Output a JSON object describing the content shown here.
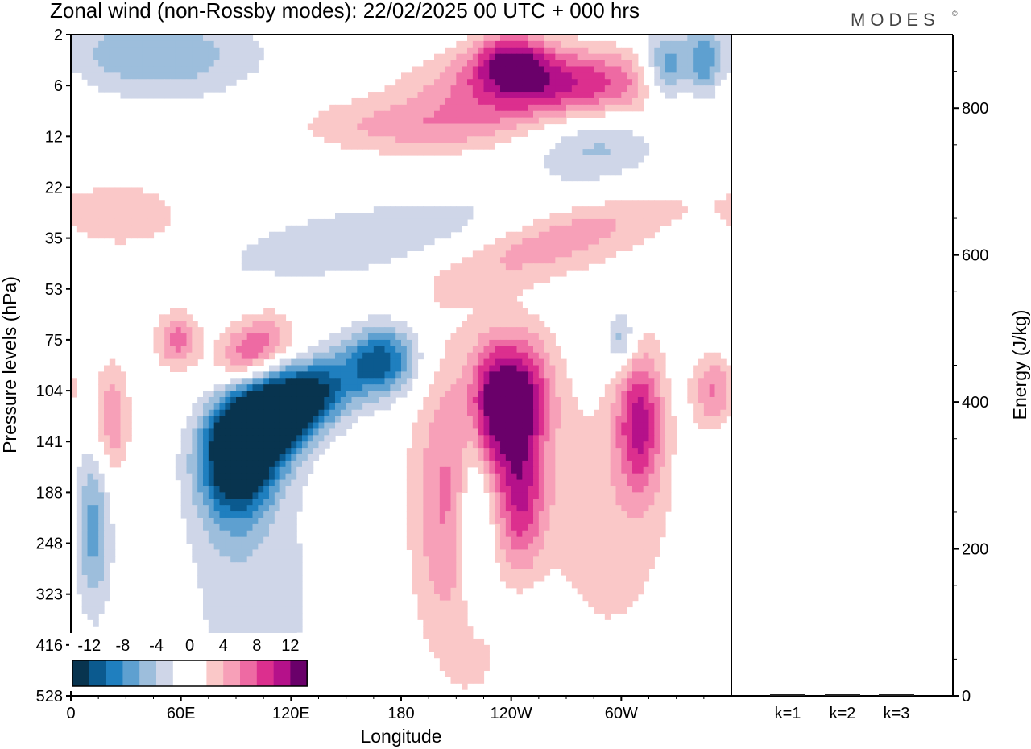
{
  "title": "Zonal wind (non-Rossby modes):  22/02/2025  00 UTC  + 000 hrs",
  "brand": "MODES",
  "brand_mark": "©",
  "colors": {
    "scale": [
      "#08344f",
      "#0b5a8f",
      "#1f7fbf",
      "#5ea0d0",
      "#9dbedc",
      "#cfd6e8",
      "#ffffff",
      "#ffffff",
      "#fac8c8",
      "#f7a0b8",
      "#ee6aa3",
      "#dc2f8e",
      "#b5118a",
      "#6a006a"
    ],
    "axis": "#000000"
  },
  "chart_data": [
    {
      "type": "heatmap",
      "title": "Zonal wind (non-Rossby modes):  22/02/2025  00 UTC  + 000 hrs",
      "xlabel": "Longitude",
      "ylabel": "Pressure levels (hPa)",
      "x_ticks": [
        "0",
        "60E",
        "120E",
        "180",
        "120W",
        "60W"
      ],
      "x_tick_values": [
        0,
        60,
        120,
        180,
        240,
        300
      ],
      "xlim": [
        0,
        360
      ],
      "y_ticks": [
        "2",
        "6",
        "12",
        "22",
        "35",
        "53",
        "75",
        "104",
        "141",
        "188",
        "248",
        "323",
        "416",
        "528"
      ],
      "colorbar_labels": [
        "-12",
        "-8",
        "-4",
        "0",
        "4",
        "8",
        "12"
      ],
      "colorbar_levels": [
        -14,
        -12,
        -10,
        -8,
        -6,
        -4,
        -2,
        0,
        2,
        4,
        6,
        8,
        10,
        12,
        14
      ],
      "features": [
        {
          "lon": 100,
          "level_index": 7.8,
          "value": -14,
          "dlon": 18,
          "dlev": 0.7,
          "slope": -0.012
        },
        {
          "lon": 125,
          "level_index": 7.2,
          "value": -13,
          "dlon": 22,
          "dlev": 0.5,
          "slope": -0.012
        },
        {
          "lon": 92,
          "level_index": 8.5,
          "value": -10,
          "dlon": 14,
          "dlev": 0.9,
          "slope": -0.01
        },
        {
          "lon": 170,
          "level_index": 6.4,
          "value": -10,
          "dlon": 14,
          "dlev": 0.5,
          "slope": 0
        },
        {
          "lon": 12,
          "level_index": 9.7,
          "value": -7,
          "dlon": 7,
          "dlev": 1.2,
          "slope": 0
        },
        {
          "lon": 220,
          "level_index": 9.3,
          "value": -6,
          "dlon": 6,
          "dlev": 1.5,
          "slope": 0
        },
        {
          "lon": 45,
          "level_index": 0.4,
          "value": -6,
          "dlon": 40,
          "dlev": 0.6,
          "slope": 0
        },
        {
          "lon": 325,
          "level_index": 0.7,
          "value": -9,
          "dlon": 9,
          "dlev": 0.5,
          "slope": 0
        },
        {
          "lon": 345,
          "level_index": 0.6,
          "value": -7,
          "dlon": 6,
          "dlev": 0.5,
          "slope": 0
        },
        {
          "lon": 285,
          "level_index": 2.1,
          "value": -5,
          "dlon": 25,
          "dlev": 0.6,
          "slope": 0
        },
        {
          "lon": 170,
          "level_index": 4.0,
          "value": -4,
          "dlon": 70,
          "dlev": 0.5,
          "slope": -0.005
        },
        {
          "lon": 300,
          "level_index": 6.0,
          "value": -6,
          "dlon": 6,
          "dlev": 0.4,
          "slope": 0
        },
        {
          "lon": 240,
          "level_index": 11.5,
          "value": -4,
          "dlon": 25,
          "dlev": 1.8,
          "slope": 0
        },
        {
          "lon": 100,
          "level_index": 11,
          "value": -3,
          "dlon": 30,
          "dlev": 2,
          "slope": 0
        },
        {
          "lon": 265,
          "level_index": 1.0,
          "value": 11,
          "dlon": 45,
          "dlev": 0.5,
          "slope": 0
        },
        {
          "lon": 240,
          "level_index": 0.5,
          "value": 9,
          "dlon": 14,
          "dlev": 0.4,
          "slope": 0
        },
        {
          "lon": 245,
          "level_index": 7.0,
          "value": 10,
          "dlon": 12,
          "dlev": 0.8,
          "slope": 0
        },
        {
          "lon": 228,
          "level_index": 7.3,
          "value": 9,
          "dlon": 9,
          "dlev": 0.9,
          "slope": 0
        },
        {
          "lon": 245,
          "level_index": 9.0,
          "value": 9,
          "dlon": 9,
          "dlev": 1.2,
          "slope": 0
        },
        {
          "lon": 310,
          "level_index": 7.6,
          "value": 10,
          "dlon": 9,
          "dlev": 1.0,
          "slope": 0
        },
        {
          "lon": 205,
          "level_index": 9.3,
          "value": 6,
          "dlon": 14,
          "dlev": 2.2,
          "slope": 0
        },
        {
          "lon": 270,
          "level_index": 9.8,
          "value": 4,
          "dlon": 40,
          "dlev": 2.0,
          "slope": 0
        },
        {
          "lon": 100,
          "level_index": 6.2,
          "value": 9,
          "dlon": 14,
          "dlev": 0.45,
          "slope": -0.01
        },
        {
          "lon": 58,
          "level_index": 6.0,
          "value": 7,
          "dlon": 8,
          "dlev": 0.4,
          "slope": 0
        },
        {
          "lon": 22,
          "level_index": 7.6,
          "value": 6,
          "dlon": 7,
          "dlev": 0.8,
          "slope": 0
        },
        {
          "lon": 265,
          "level_index": 4.0,
          "value": 6,
          "dlon": 45,
          "dlev": 0.5,
          "slope": -0.01
        },
        {
          "lon": 190,
          "level_index": 1.8,
          "value": 5,
          "dlon": 45,
          "dlev": 0.4,
          "slope": 0
        },
        {
          "lon": 350,
          "level_index": 7.0,
          "value": 6,
          "dlon": 8,
          "dlev": 0.5,
          "slope": 0
        },
        {
          "lon": 30,
          "level_index": 3.6,
          "value": 3,
          "dlon": 30,
          "dlev": 0.6,
          "slope": 0
        },
        {
          "lon": 225,
          "level_index": 12.2,
          "value": 4,
          "dlon": 12,
          "dlev": 1.0,
          "slope": 0
        }
      ]
    },
    {
      "type": "bar",
      "categories": [
        "k=1",
        "k=2",
        "k=3"
      ],
      "values": [
        1,
        1,
        1
      ],
      "ylabel": "Energy (J/kg)",
      "y_ticks": [
        "0",
        "200",
        "400",
        "600",
        "800"
      ],
      "ylim": [
        0,
        900
      ]
    }
  ]
}
